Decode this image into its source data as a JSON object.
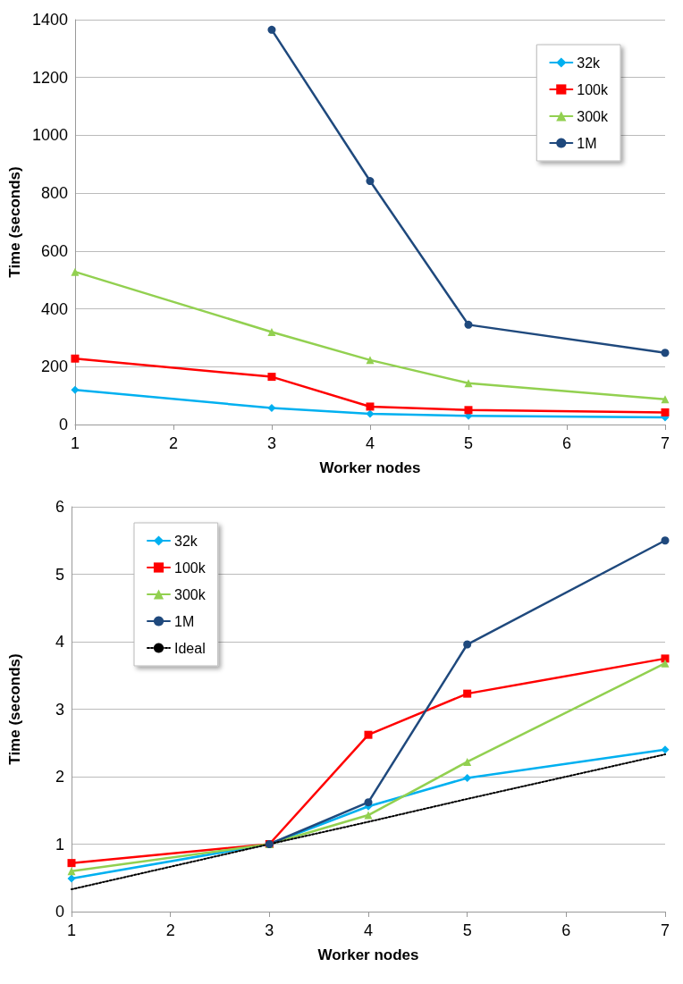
{
  "chart_data": [
    {
      "type": "line",
      "xlabel": "Worker nodes",
      "ylabel": "Time (seconds)",
      "x": [
        1,
        3,
        4,
        5,
        7
      ],
      "xlim": [
        1,
        7
      ],
      "xticks": [
        1,
        2,
        3,
        4,
        5,
        6,
        7
      ],
      "ylim": [
        0,
        1400
      ],
      "yticks": [
        0,
        200,
        400,
        600,
        800,
        1000,
        1200,
        1400
      ],
      "grid": "y",
      "legend": "top right",
      "series": [
        {
          "name": "32k",
          "color": "#00b0f0",
          "marker": "diamond",
          "values": [
            120,
            57,
            37,
            30,
            25
          ]
        },
        {
          "name": "100k",
          "color": "#ff0000",
          "marker": "square",
          "values": [
            228,
            165,
            62,
            50,
            42
          ]
        },
        {
          "name": "300k",
          "color": "#92d050",
          "marker": "triangle",
          "values": [
            528,
            320,
            223,
            143,
            87
          ]
        },
        {
          "name": "1M",
          "color": "#1f497d",
          "marker": "circle",
          "values": [
            null,
            1365,
            842,
            345,
            248
          ]
        }
      ]
    },
    {
      "type": "line",
      "xlabel": "Worker nodes",
      "ylabel": "Time (seconds)",
      "x": [
        1,
        3,
        4,
        5,
        7
      ],
      "xlim": [
        1,
        7
      ],
      "xticks": [
        1,
        2,
        3,
        4,
        5,
        6,
        7
      ],
      "ylim": [
        0,
        6
      ],
      "yticks": [
        0,
        1,
        2,
        3,
        4,
        5,
        6
      ],
      "grid": "y",
      "legend": "top left",
      "series": [
        {
          "name": "32k",
          "color": "#00b0f0",
          "marker": "diamond",
          "values": [
            0.49,
            1,
            1.56,
            1.98,
            2.4
          ]
        },
        {
          "name": "100k",
          "color": "#ff0000",
          "marker": "square",
          "values": [
            0.72,
            1,
            2.62,
            3.23,
            3.75
          ]
        },
        {
          "name": "300k",
          "color": "#92d050",
          "marker": "triangle",
          "values": [
            0.6,
            1,
            1.43,
            2.22,
            3.68
          ]
        },
        {
          "name": "1M",
          "color": "#1f497d",
          "marker": "circle",
          "values": [
            null,
            1,
            1.62,
            3.96,
            5.5
          ]
        },
        {
          "name": "Ideal",
          "color": "#000000",
          "marker": "none",
          "line_style": "dotted",
          "values": [
            0.33,
            1,
            1.33,
            1.67,
            2.33
          ]
        }
      ]
    }
  ]
}
